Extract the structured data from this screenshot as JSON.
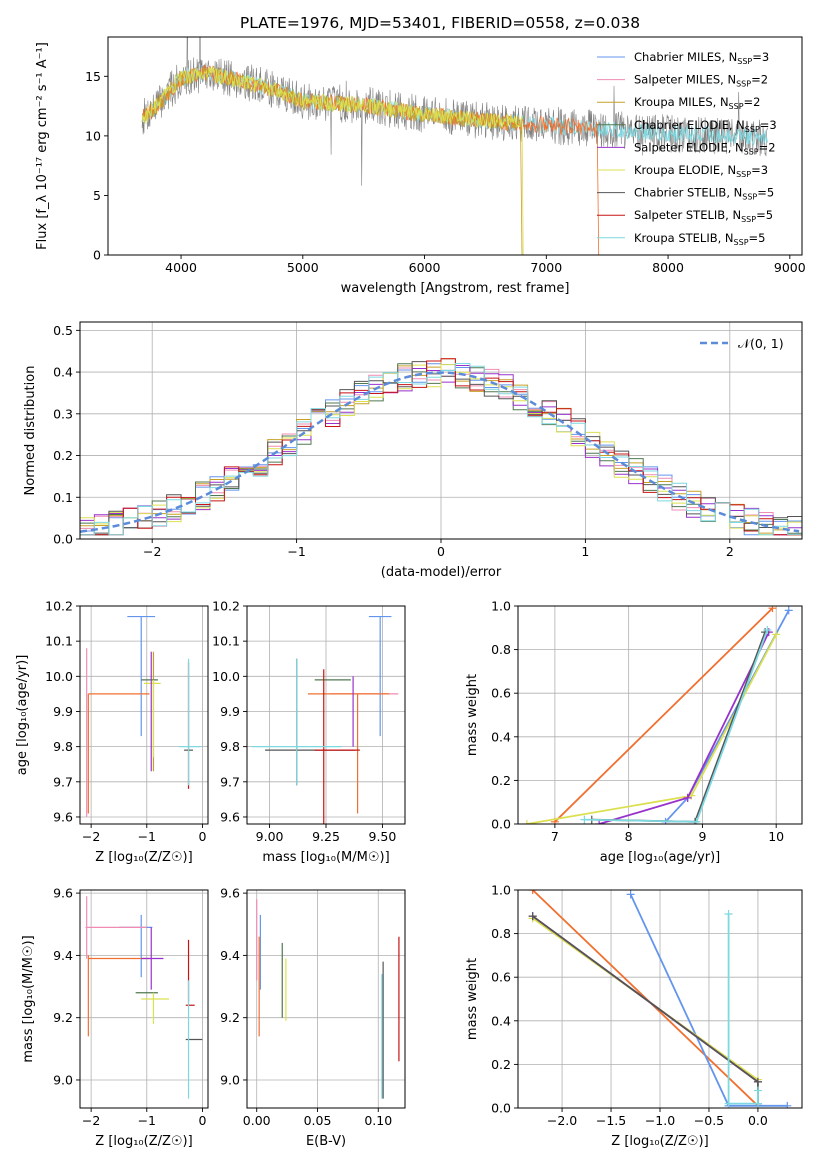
{
  "figure_title": "PLATE=1976, MJD=53401, FIBERID=0558, z=0.038",
  "series_colors": [
    "#6495ed",
    "#f08cb4",
    "#c8a028",
    "#507850",
    "#9932cc",
    "#dce050",
    "#555555",
    "#c81414",
    "#7ed8e0"
  ],
  "chart_data": [
    {
      "id": "spectrum",
      "type": "line",
      "title": "PLATE=1976, MJD=53401, FIBERID=0558, z=0.038",
      "xlabel": "wavelength [Angstrom, rest frame]",
      "ylabel": "Flux [f_λ 10⁻¹⁷ erg cm⁻² s⁻¹ A⁻¹]",
      "xlim": [
        3400,
        9100
      ],
      "ylim": [
        0,
        18.3
      ],
      "xticks": [
        4000,
        5000,
        6000,
        7000,
        8000,
        9000
      ],
      "yticks": [
        0,
        5,
        10,
        15
      ],
      "grid": false,
      "legend_position": "top-right",
      "legend": [
        {
          "name": "Chabrier MILES, N",
          "sub": "SSP",
          "tail": "=3"
        },
        {
          "name": "Salpeter MILES, N",
          "sub": "SSP",
          "tail": "=2"
        },
        {
          "name": "Kroupa MILES, N",
          "sub": "SSP",
          "tail": "=2"
        },
        {
          "name": "Chabrier ELODIE, N",
          "sub": "SSP",
          "tail": "=3"
        },
        {
          "name": "Salpeter ELODIE, N",
          "sub": "SSP",
          "tail": "=2"
        },
        {
          "name": "Kroupa ELODIE, N",
          "sub": "SSP",
          "tail": "=3"
        },
        {
          "name": "Chabrier STELIB, N",
          "sub": "SSP",
          "tail": "=5"
        },
        {
          "name": "Salpeter STELIB, N",
          "sub": "SSP",
          "tail": "=5"
        },
        {
          "name": "Kroupa STELIB, N",
          "sub": "SSP",
          "tail": "=5"
        }
      ],
      "data_color": "#808080",
      "data_range": [
        3680,
        8820
      ],
      "continuum": {
        "x": [
          3680,
          3800,
          4000,
          4200,
          4500,
          4800,
          5000,
          5500,
          6000,
          6500,
          7000,
          7400,
          8000,
          8500,
          8820
        ],
        "y": [
          11.5,
          12.5,
          14.8,
          15.3,
          14.6,
          13.8,
          12.9,
          12.6,
          11.8,
          11.3,
          10.9,
          10.6,
          10.2,
          10.0,
          9.8
        ]
      },
      "model_cutoffs": [
        {
          "color": "#f07030",
          "end": 7420
        },
        {
          "color": "#c8a028",
          "end": 6790
        },
        {
          "color": "#dce050",
          "end": 6800
        },
        {
          "color": "#c8a028",
          "end": 3900
        }
      ]
    },
    {
      "id": "residual_histogram",
      "type": "histogram",
      "xlabel": "(data-model)/error",
      "ylabel": "Normed distribution",
      "xlim": [
        -2.5,
        2.5
      ],
      "ylim": [
        0,
        0.52
      ],
      "xticks": [
        -2,
        -1,
        0,
        1,
        2
      ],
      "yticks": [
        0.0,
        0.1,
        0.2,
        0.3,
        0.4,
        0.5
      ],
      "grid": true,
      "bin_width": 0.1,
      "legend_position": "top-right",
      "reference": {
        "name": "𝒩(0, 1)",
        "mu": 0,
        "sigma": 1,
        "color": "#5b8bd9",
        "style": "dashed"
      }
    },
    {
      "id": "age_vs_Z",
      "type": "errorbar",
      "xlabel": "Z [log₁₀(Z/Z☉)]",
      "ylabel": "age  [log₁₀(age/yr)]",
      "xlim": [
        -2.2,
        0.1
      ],
      "ylim": [
        9.58,
        10.2
      ],
      "xticks": [
        -2,
        -1,
        0
      ],
      "yticks": [
        9.6,
        9.7,
        9.8,
        9.9,
        10.0,
        10.1,
        10.2
      ],
      "grid": true,
      "points": [
        {
          "color": "#6495ed",
          "x": -1.1,
          "xerr": 0.25,
          "y": 10.17,
          "yerr": 0.0
        },
        {
          "color": "#6495ed",
          "x": -1.1,
          "xerr": 0.0,
          "y": 10.0,
          "yerr": 0.17
        },
        {
          "color": "#f08cb4",
          "x": -2.08,
          "xerr": 0.0,
          "y": 9.84,
          "yerr": 0.24
        },
        {
          "color": "#f07030",
          "x": -1.5,
          "xerr": 0.55,
          "y": 9.95,
          "yerr": 0.0
        },
        {
          "color": "#f07030",
          "x": -2.05,
          "xerr": 0.0,
          "y": 9.78,
          "yerr": 0.17
        },
        {
          "color": "#c8a028",
          "x": -0.88,
          "xerr": 0.0,
          "y": 9.9,
          "yerr": 0.17
        },
        {
          "color": "#507850",
          "x": -0.95,
          "xerr": 0.15,
          "y": 9.99,
          "yerr": 0.0
        },
        {
          "color": "#dce050",
          "x": -0.9,
          "xerr": 0.15,
          "y": 9.98,
          "yerr": 0.0
        },
        {
          "color": "#dce050",
          "x": -0.88,
          "xerr": 0.0,
          "y": 9.88,
          "yerr": 0.11
        },
        {
          "color": "#9932cc",
          "x": -0.92,
          "xerr": 0.0,
          "y": 9.9,
          "yerr": 0.17
        },
        {
          "color": "#555555",
          "x": -0.25,
          "xerr": 0.08,
          "y": 9.79,
          "yerr": 0.0
        },
        {
          "color": "#c81414",
          "x": -0.25,
          "xerr": 0.0,
          "y": 9.86,
          "yerr": 0.18
        },
        {
          "color": "#7ed8e0",
          "x": -0.22,
          "xerr": 0.2,
          "y": 9.8,
          "yerr": 0.0
        },
        {
          "color": "#7ed8e0",
          "x": -0.25,
          "xerr": 0.0,
          "y": 9.87,
          "yerr": 0.18
        }
      ]
    },
    {
      "id": "age_vs_mass",
      "type": "errorbar",
      "xlabel": "mass [log₁₀(M/M☉)]",
      "ylabel": "",
      "xlim": [
        8.9,
        9.6
      ],
      "ylim": [
        9.58,
        10.2
      ],
      "xticks": [
        9.0,
        9.25,
        9.5
      ],
      "yticks": [
        9.6,
        9.7,
        9.8,
        9.9,
        10.0,
        10.1,
        10.2
      ],
      "grid": true,
      "points": [
        {
          "color": "#6495ed",
          "x": 9.49,
          "xerr": 0.05,
          "y": 10.17,
          "yerr": 0.0
        },
        {
          "color": "#6495ed",
          "x": 9.49,
          "xerr": 0.0,
          "y": 10.0,
          "yerr": 0.17
        },
        {
          "color": "#f08cb4",
          "x": 9.42,
          "xerr": 0.15,
          "y": 9.95,
          "yerr": 0.0
        },
        {
          "color": "#f07030",
          "x": 9.39,
          "xerr": 0.0,
          "y": 9.78,
          "yerr": 0.17
        },
        {
          "color": "#f07030",
          "x": 9.35,
          "xerr": 0.18,
          "y": 9.95,
          "yerr": 0.0
        },
        {
          "color": "#507850",
          "x": 9.28,
          "xerr": 0.08,
          "y": 9.99,
          "yerr": 0.0
        },
        {
          "color": "#9932cc",
          "x": 9.37,
          "xerr": 0.0,
          "y": 9.9,
          "yerr": 0.1
        },
        {
          "color": "#555555",
          "x": 9.12,
          "xerr": 0.0,
          "y": 9.87,
          "yerr": 0.18
        },
        {
          "color": "#555555",
          "x": 9.18,
          "xerr": 0.2,
          "y": 9.79,
          "yerr": 0.0
        },
        {
          "color": "#c81414",
          "x": 9.24,
          "xerr": 0.0,
          "y": 9.8,
          "yerr": 0.22
        },
        {
          "color": "#c81414",
          "x": 9.3,
          "xerr": 0.1,
          "y": 9.79,
          "yerr": 0.0
        },
        {
          "color": "#7ed8e0",
          "x": 9.12,
          "xerr": 0.2,
          "y": 9.8,
          "yerr": 0.0
        },
        {
          "color": "#7ed8e0",
          "x": 9.12,
          "xerr": 0.0,
          "y": 9.87,
          "yerr": 0.18
        }
      ]
    },
    {
      "id": "mass_weight_vs_age",
      "type": "line",
      "xlabel": "age  [log₁₀(age/yr)]",
      "ylabel": "mass weight",
      "xlim": [
        6.5,
        10.35
      ],
      "ylim": [
        0,
        1
      ],
      "xticks": [
        7,
        8,
        9,
        10
      ],
      "yticks": [
        0.0,
        0.2,
        0.4,
        0.6,
        0.8,
        1.0
      ],
      "grid": true,
      "series": [
        {
          "color": "#f07030",
          "x": [
            7.0,
            9.95
          ],
          "y": [
            0.01,
            0.99
          ]
        },
        {
          "color": "#6495ed",
          "x": [
            8.5,
            8.8,
            10.17
          ],
          "y": [
            0.01,
            0.12,
            0.98
          ]
        },
        {
          "color": "#dce050",
          "x": [
            6.62,
            8.85,
            10.0
          ],
          "y": [
            0.0,
            0.13,
            0.87
          ]
        },
        {
          "color": "#9932cc",
          "x": [
            7.6,
            8.8,
            9.9
          ],
          "y": [
            0.0,
            0.12,
            0.88
          ]
        },
        {
          "color": "#555555",
          "x": [
            7.5,
            8.9,
            9.85
          ],
          "y": [
            0.02,
            0.01,
            0.88
          ]
        },
        {
          "color": "#7ed8e0",
          "x": [
            7.4,
            8.92,
            9.88
          ],
          "y": [
            0.02,
            0.01,
            0.89
          ]
        }
      ]
    },
    {
      "id": "mass_vs_Z",
      "type": "errorbar",
      "xlabel": "Z [log₁₀(Z/Z☉)]",
      "ylabel": "mass [log₁₀(M/M☉)]",
      "xlim": [
        -2.2,
        0.1
      ],
      "ylim": [
        8.91,
        9.61
      ],
      "xticks": [
        -2,
        -1,
        0
      ],
      "yticks": [
        9.0,
        9.2,
        9.4,
        9.6
      ],
      "grid": true,
      "points": [
        {
          "color": "#6495ed",
          "x": -1.2,
          "xerr": 0.3,
          "y": 9.49,
          "yerr": 0.0
        },
        {
          "color": "#6495ed",
          "x": -1.1,
          "xerr": 0.0,
          "y": 9.43,
          "yerr": 0.1
        },
        {
          "color": "#f08cb4",
          "x": -1.55,
          "xerr": 0.55,
          "y": 9.49,
          "yerr": 0.0
        },
        {
          "color": "#f08cb4",
          "x": -2.08,
          "xerr": 0.0,
          "y": 9.49,
          "yerr": 0.1
        },
        {
          "color": "#f07030",
          "x": -1.5,
          "xerr": 0.55,
          "y": 9.39,
          "yerr": 0.0
        },
        {
          "color": "#f07030",
          "x": -2.05,
          "xerr": 0.0,
          "y": 9.27,
          "yerr": 0.13
        },
        {
          "color": "#9932cc",
          "x": -0.9,
          "xerr": 0.2,
          "y": 9.39,
          "yerr": 0.0
        },
        {
          "color": "#9932cc",
          "x": -0.92,
          "xerr": 0.0,
          "y": 9.39,
          "yerr": 0.1
        },
        {
          "color": "#507850",
          "x": -1.0,
          "xerr": 0.2,
          "y": 9.28,
          "yerr": 0.0
        },
        {
          "color": "#dce050",
          "x": -0.85,
          "xerr": 0.25,
          "y": 9.26,
          "yerr": 0.0
        },
        {
          "color": "#dce050",
          "x": -0.88,
          "xerr": 0.0,
          "y": 9.23,
          "yerr": 0.05
        },
        {
          "color": "#c81414",
          "x": -0.22,
          "xerr": 0.08,
          "y": 9.24,
          "yerr": 0.0
        },
        {
          "color": "#c81414",
          "x": -0.25,
          "xerr": 0.0,
          "y": 9.35,
          "yerr": 0.1
        },
        {
          "color": "#555555",
          "x": -0.15,
          "xerr": 0.15,
          "y": 9.13,
          "yerr": 0.0
        },
        {
          "color": "#7ed8e0",
          "x": -0.25,
          "xerr": 0.0,
          "y": 9.13,
          "yerr": 0.19
        }
      ]
    },
    {
      "id": "mass_vs_ebv",
      "type": "errorbar",
      "xlabel": "E(B-V)",
      "ylabel": "",
      "xlim": [
        -0.008,
        0.122
      ],
      "ylim": [
        8.91,
        9.61
      ],
      "xticks": [
        0.0,
        0.05,
        0.1
      ],
      "yticks": [
        9.0,
        9.2,
        9.4,
        9.6
      ],
      "grid": true,
      "points": [
        {
          "color": "#6495ed",
          "x": 0.003,
          "xerr": 0.0,
          "y": 9.41,
          "yerr": 0.12
        },
        {
          "color": "#f08cb4",
          "x": 0.0,
          "xerr": 0.0,
          "y": 9.45,
          "yerr": 0.13
        },
        {
          "color": "#f07030",
          "x": 0.002,
          "xerr": 0.0,
          "y": 9.3,
          "yerr": 0.16
        },
        {
          "color": "#507850",
          "x": 0.021,
          "xerr": 0.0,
          "y": 9.32,
          "yerr": 0.12
        },
        {
          "color": "#dce050",
          "x": 0.024,
          "xerr": 0.0,
          "y": 9.29,
          "yerr": 0.1
        },
        {
          "color": "#555555",
          "x": 0.104,
          "xerr": 0.0,
          "y": 9.16,
          "yerr": 0.22
        },
        {
          "color": "#7ed8e0",
          "x": 0.103,
          "xerr": 0.0,
          "y": 9.14,
          "yerr": 0.2
        },
        {
          "color": "#c81414",
          "x": 0.117,
          "xerr": 0.0,
          "y": 9.26,
          "yerr": 0.2
        }
      ]
    },
    {
      "id": "mass_weight_vs_Z",
      "type": "line",
      "xlabel": "Z [log₁₀(Z/Z☉)]",
      "ylabel": "mass weight",
      "xlim": [
        -2.45,
        0.45
      ],
      "ylim": [
        0,
        1
      ],
      "xticks": [
        -2.0,
        -1.5,
        -1.0,
        -0.5,
        0.0
      ],
      "yticks": [
        0.0,
        0.2,
        0.4,
        0.6,
        0.8,
        1.0
      ],
      "grid": true,
      "series": [
        {
          "color": "#f07030",
          "x": [
            -2.3,
            0.0
          ],
          "y": [
            1.0,
            0.01
          ]
        },
        {
          "color": "#6495ed",
          "x": [
            -1.3,
            -0.3,
            0.3
          ],
          "y": [
            0.98,
            0.01,
            0.01
          ]
        },
        {
          "color": "#dce050",
          "x": [
            -2.3,
            0.0
          ],
          "y": [
            0.87,
            0.13
          ]
        },
        {
          "color": "#9932cc",
          "x": [
            -2.3,
            0.0
          ],
          "y": [
            0.88,
            0.12
          ]
        },
        {
          "color": "#555555",
          "x": [
            -2.3,
            0.0,
            0.0
          ],
          "y": [
            0.88,
            0.12,
            0.02
          ]
        },
        {
          "color": "#7ed8e0",
          "x": [
            -0.3,
            -0.3,
            0.0,
            0.0
          ],
          "y": [
            0.89,
            0.02,
            0.02,
            0.08
          ]
        }
      ]
    }
  ]
}
